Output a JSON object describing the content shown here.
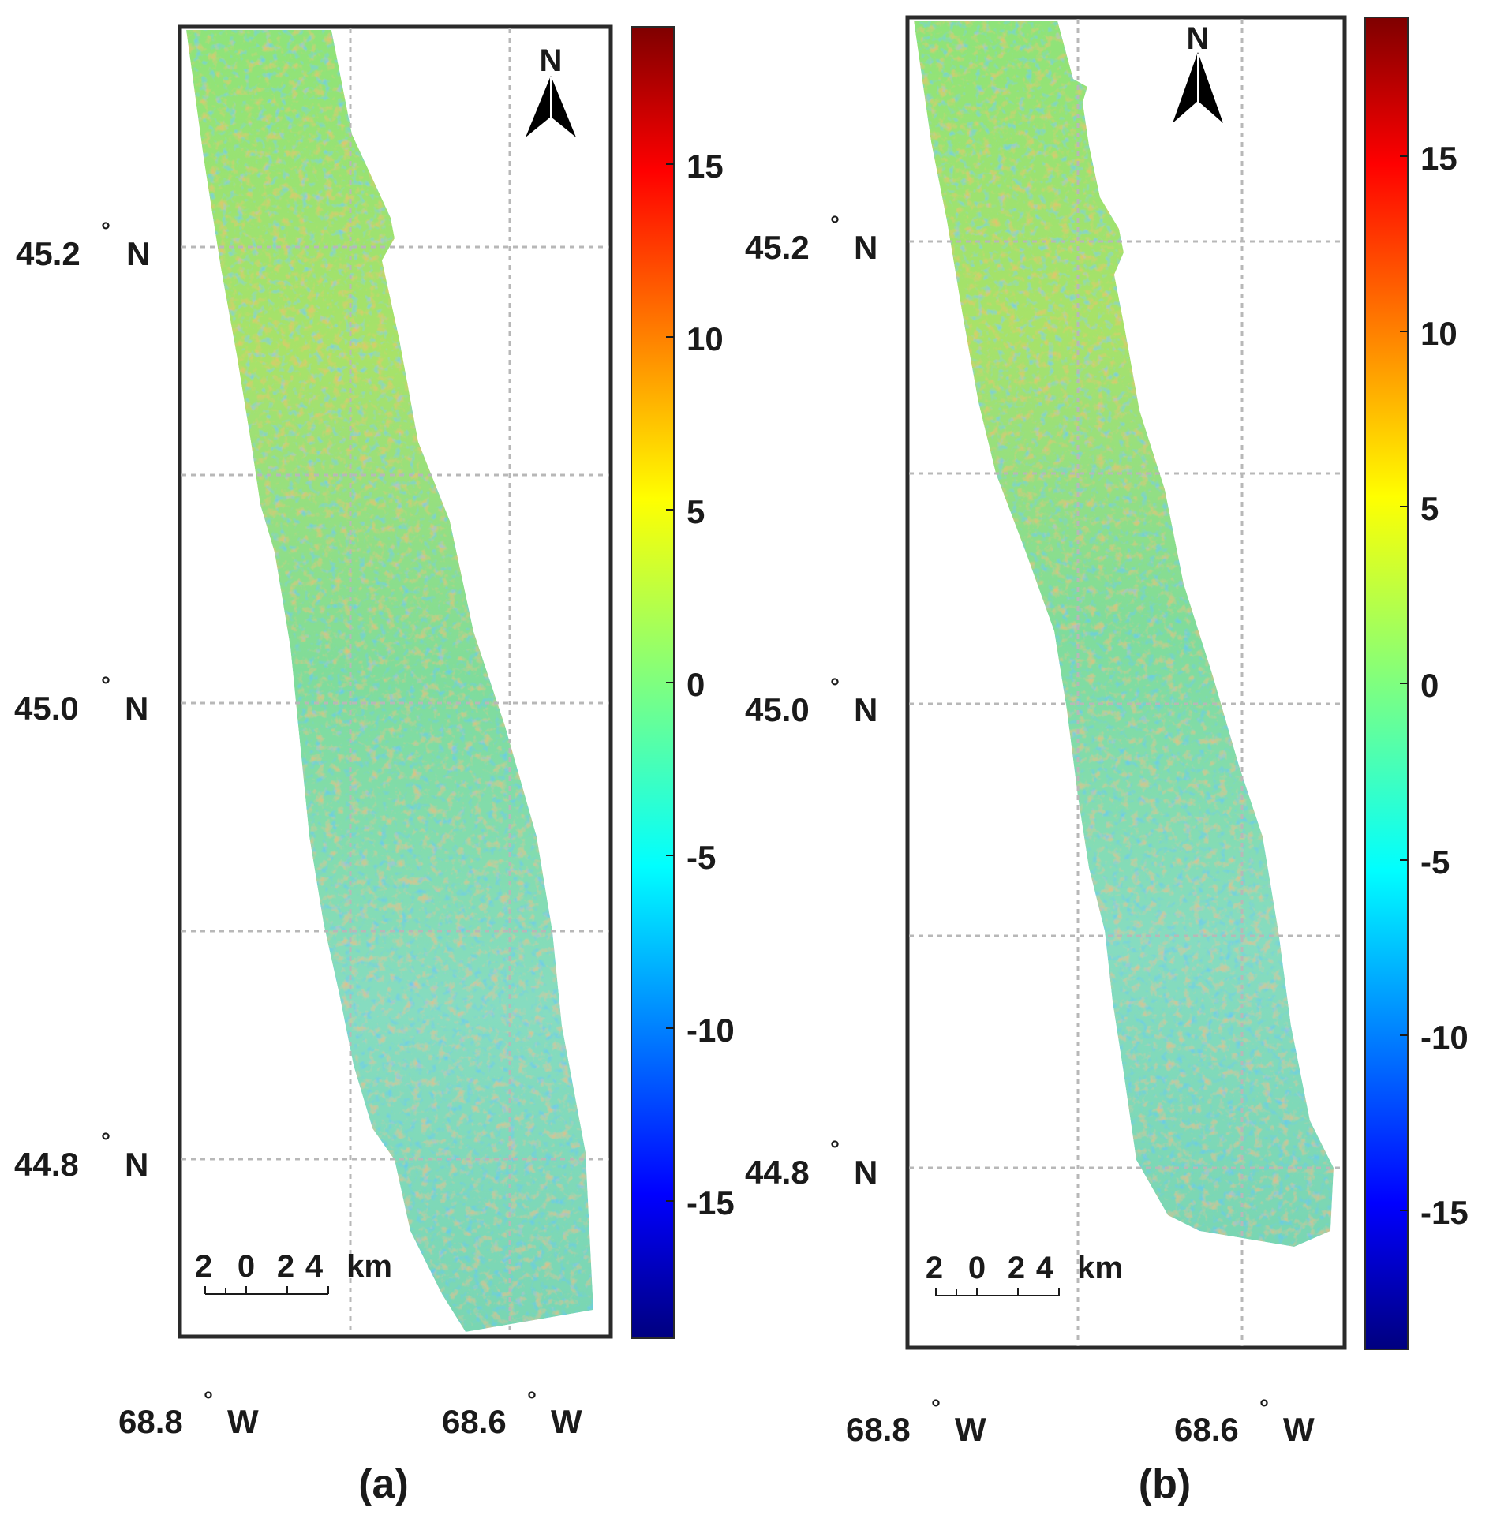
{
  "figure": {
    "panels": [
      {
        "id": "a",
        "caption": "(a)",
        "lat_labels": [
          {
            "deg": "45.2",
            "sym": "°",
            "hem": "N"
          },
          {
            "deg": "45.0",
            "sym": "°",
            "hem": "N"
          },
          {
            "deg": "44.8",
            "sym": "°",
            "hem": "N"
          }
        ],
        "lon_labels": [
          {
            "deg": "68.8",
            "sym": "°",
            "hem": "W"
          },
          {
            "deg": "68.6",
            "sym": "°",
            "hem": "W"
          }
        ],
        "north_arrow": {
          "letter": "N",
          "icon": "north-arrow-icon"
        },
        "scale_bar": {
          "ticks": [
            "2",
            "0",
            "2",
            "4"
          ],
          "unit": "km"
        },
        "colorbar": {
          "colormap": "jet",
          "ticks": [
            "15",
            "10",
            "5",
            "0",
            "-5",
            "-10",
            "-15"
          ]
        }
      },
      {
        "id": "b",
        "caption": "(b)",
        "lat_labels": [
          {
            "deg": "45.2",
            "sym": "°",
            "hem": "N"
          },
          {
            "deg": "45.0",
            "sym": "°",
            "hem": "N"
          },
          {
            "deg": "44.8",
            "sym": "°",
            "hem": "N"
          }
        ],
        "lon_labels": [
          {
            "deg": "68.8",
            "sym": "°",
            "hem": "W"
          },
          {
            "deg": "68.6",
            "sym": "°",
            "hem": "W"
          }
        ],
        "north_arrow": {
          "letter": "N",
          "icon": "north-arrow-icon"
        },
        "scale_bar": {
          "ticks": [
            "2",
            "0",
            "2",
            "4"
          ],
          "unit": "km"
        },
        "colorbar": {
          "colormap": "jet",
          "ticks": [
            "15",
            "10",
            "5",
            "0",
            "-5",
            "-10",
            "-15"
          ]
        }
      }
    ]
  }
}
